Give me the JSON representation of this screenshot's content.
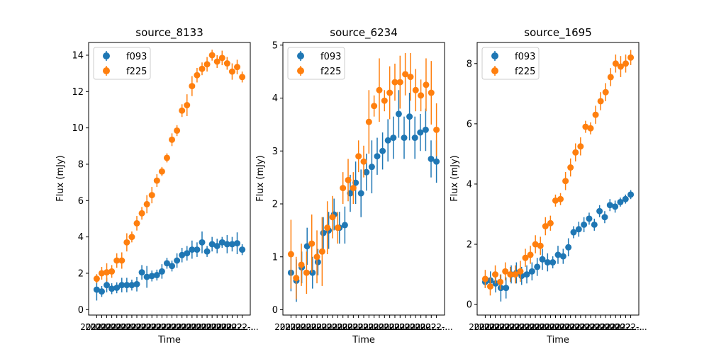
{
  "figure": {
    "background": "#ffffff",
    "series_colors": {
      "f093": "#1f77b4",
      "f225": "#ff7f0e"
    }
  },
  "chart_data": [
    {
      "type": "scatter",
      "title": "source_8133",
      "xlabel": "Time",
      "ylabel": "Flux (mJy)",
      "ylim": [
        -0.3,
        14.7
      ],
      "yticks": [
        0,
        2,
        4,
        6,
        8,
        10,
        12,
        14
      ],
      "x_tick_labels_overlapping": "2022-...",
      "legend": {
        "placement": "top-left",
        "entries": [
          "f093",
          "f225"
        ]
      },
      "grid": false,
      "series": [
        {
          "name": "f093",
          "color": "#1f77b4",
          "values": [
            1.1,
            1.0,
            1.35,
            1.15,
            1.2,
            1.35,
            1.35,
            1.35,
            1.4,
            2.05,
            1.8,
            1.85,
            1.9,
            2.1,
            2.55,
            2.4,
            2.7,
            3.0,
            3.1,
            3.3,
            3.3,
            3.7,
            3.2,
            3.6,
            3.5,
            3.7,
            3.6,
            3.6,
            3.65,
            3.3
          ],
          "errors": [
            0.6,
            0.3,
            0.4,
            0.3,
            0.3,
            0.4,
            0.4,
            0.3,
            0.4,
            0.4,
            0.6,
            0.3,
            0.3,
            0.4,
            0.3,
            0.3,
            0.4,
            0.4,
            0.4,
            0.5,
            0.4,
            0.6,
            0.3,
            0.4,
            0.4,
            0.3,
            0.5,
            0.4,
            0.6,
            0.3
          ]
        },
        {
          "name": "f225",
          "color": "#ff7f0e",
          "values": [
            1.7,
            2.0,
            2.05,
            2.1,
            2.7,
            2.7,
            3.7,
            4.0,
            4.75,
            5.3,
            5.8,
            6.3,
            7.1,
            7.6,
            8.35,
            9.35,
            9.85,
            10.95,
            11.25,
            12.3,
            12.9,
            13.25,
            13.5,
            14.0,
            13.65,
            13.85,
            13.55,
            13.1,
            13.35,
            12.8
          ],
          "errors": [
            0.25,
            0.35,
            0.5,
            0.35,
            0.4,
            0.45,
            0.5,
            0.3,
            0.4,
            0.35,
            0.5,
            0.45,
            0.35,
            0.25,
            0.25,
            0.35,
            0.3,
            0.35,
            0.6,
            0.55,
            0.4,
            0.35,
            0.4,
            0.3,
            0.35,
            0.4,
            0.35,
            0.45,
            0.4,
            0.3
          ]
        }
      ]
    },
    {
      "type": "scatter",
      "title": "source_6234",
      "xlabel": "Time",
      "ylabel": "Flux (mJy)",
      "ylim": [
        -0.1,
        5.05
      ],
      "yticks": [
        0,
        1,
        2,
        3,
        4,
        5
      ],
      "x_tick_labels_overlapping": "2022-...",
      "legend": {
        "placement": "top-left",
        "entries": [
          "f093",
          "f225"
        ]
      },
      "grid": false,
      "series": [
        {
          "name": "f093",
          "color": "#1f77b4",
          "values": [
            0.7,
            0.55,
            0.8,
            1.2,
            0.7,
            0.9,
            1.45,
            1.5,
            1.8,
            1.55,
            1.6,
            2.2,
            2.4,
            2.2,
            2.6,
            2.7,
            2.9,
            3.0,
            3.2,
            3.25,
            3.7,
            3.25,
            3.65,
            3.25,
            3.35,
            3.4,
            2.85,
            2.8
          ],
          "errors": [
            0.35,
            0.4,
            0.3,
            0.35,
            0.3,
            0.25,
            0.3,
            0.35,
            0.3,
            0.3,
            0.35,
            0.35,
            0.4,
            0.45,
            0.35,
            0.5,
            0.35,
            0.35,
            0.4,
            0.4,
            0.45,
            0.4,
            0.45,
            0.4,
            0.35,
            0.4,
            0.35,
            0.4
          ]
        },
        {
          "name": "f225",
          "color": "#ff7f0e",
          "values": [
            1.05,
            0.6,
            0.85,
            0.7,
            1.25,
            1.0,
            1.1,
            1.55,
            1.75,
            1.55,
            2.3,
            2.45,
            2.3,
            2.9,
            2.8,
            3.55,
            3.85,
            4.15,
            3.95,
            4.1,
            4.3,
            4.3,
            4.45,
            4.4,
            4.15,
            4.05,
            4.25,
            4.1,
            3.4
          ],
          "errors": [
            0.65,
            0.4,
            0.4,
            0.4,
            0.55,
            0.5,
            0.65,
            0.5,
            0.4,
            0.3,
            0.3,
            0.4,
            0.3,
            0.3,
            0.3,
            0.6,
            0.2,
            0.6,
            0.2,
            0.5,
            0.35,
            0.5,
            0.4,
            0.45,
            0.4,
            0.3,
            0.5,
            0.6,
            0.5
          ]
        }
      ]
    },
    {
      "type": "scatter",
      "title": "source_1695",
      "xlabel": "Time",
      "ylabel": "Flux (mJy)",
      "ylim": [
        -0.35,
        8.7
      ],
      "yticks": [
        0,
        2,
        4,
        6,
        8
      ],
      "x_tick_labels_overlapping": "2022-...",
      "legend": {
        "placement": "top-left",
        "entries": [
          "f093",
          "f225"
        ]
      },
      "grid": false,
      "series": [
        {
          "name": "f093",
          "color": "#1f77b4",
          "values": [
            0.75,
            0.8,
            0.7,
            0.55,
            0.55,
            1.0,
            1.05,
            0.95,
            1.0,
            1.1,
            1.25,
            1.5,
            1.4,
            1.4,
            1.65,
            1.6,
            1.9,
            2.4,
            2.5,
            2.65,
            2.85,
            2.65,
            3.1,
            2.9,
            3.3,
            3.25,
            3.4,
            3.5,
            3.65
          ],
          "errors": [
            0.2,
            0.3,
            0.3,
            0.45,
            0.35,
            0.3,
            0.35,
            0.3,
            0.3,
            0.3,
            0.3,
            0.35,
            0.3,
            0.2,
            0.3,
            0.25,
            0.3,
            0.2,
            0.25,
            0.25,
            0.2,
            0.2,
            0.2,
            0.2,
            0.2,
            0.2,
            0.15,
            0.15,
            0.15
          ]
        },
        {
          "name": "f225",
          "color": "#ff7f0e",
          "values": [
            0.85,
            0.6,
            1.0,
            0.75,
            1.1,
            1.0,
            1.0,
            1.1,
            1.55,
            1.65,
            2.0,
            1.95,
            2.6,
            2.7,
            3.45,
            3.5,
            4.1,
            4.55,
            5.05,
            5.25,
            5.9,
            5.85,
            6.3,
            6.75,
            7.05,
            7.55,
            8.0,
            7.9,
            8.0,
            8.2
          ],
          "errors": [
            0.3,
            0.3,
            0.3,
            0.25,
            0.3,
            0.25,
            0.3,
            0.35,
            0.3,
            0.3,
            0.3,
            0.3,
            0.3,
            0.25,
            0.2,
            0.2,
            0.3,
            0.3,
            0.3,
            0.3,
            0.2,
            0.2,
            0.3,
            0.3,
            0.3,
            0.3,
            0.3,
            0.35,
            0.3,
            0.25
          ]
        }
      ]
    }
  ]
}
